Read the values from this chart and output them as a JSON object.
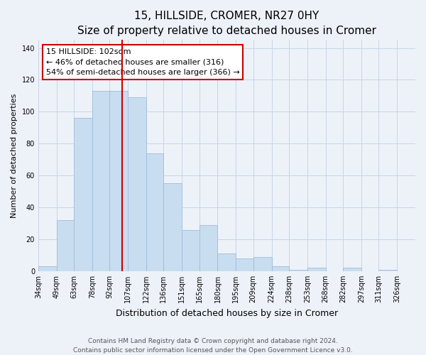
{
  "title": "15, HILLSIDE, CROMER, NR27 0HY",
  "subtitle": "Size of property relative to detached houses in Cromer",
  "xlabel": "Distribution of detached houses by size in Cromer",
  "ylabel": "Number of detached properties",
  "bar_color": "#c9ddf0",
  "bar_edge_color": "#a0bcd8",
  "background_color": "#edf2f9",
  "grid_color": "#c8d4e8",
  "categories": [
    "34sqm",
    "49sqm",
    "63sqm",
    "78sqm",
    "92sqm",
    "107sqm",
    "122sqm",
    "136sqm",
    "151sqm",
    "165sqm",
    "180sqm",
    "195sqm",
    "209sqm",
    "224sqm",
    "238sqm",
    "253sqm",
    "268sqm",
    "282sqm",
    "297sqm",
    "311sqm",
    "326sqm"
  ],
  "bar_heights": [
    3,
    32,
    96,
    113,
    113,
    109,
    74,
    55,
    26,
    29,
    11,
    8,
    9,
    3,
    1,
    2,
    0,
    2,
    0,
    1,
    0
  ],
  "bin_edges": [
    34,
    49,
    63,
    78,
    92,
    107,
    122,
    136,
    151,
    165,
    180,
    195,
    209,
    224,
    238,
    253,
    268,
    282,
    297,
    311,
    326,
    341
  ],
  "ylim": [
    0,
    145
  ],
  "yticks": [
    0,
    20,
    40,
    60,
    80,
    100,
    120,
    140
  ],
  "vline_x": 102,
  "vline_color": "#cc0000",
  "annotation_title": "15 HILLSIDE: 102sqm",
  "annotation_line1": "← 46% of detached houses are smaller (316)",
  "annotation_line2": "54% of semi-detached houses are larger (366) →",
  "annotation_box_facecolor": "#ffffff",
  "annotation_box_edgecolor": "#cc0000",
  "footer1": "Contains HM Land Registry data © Crown copyright and database right 2024.",
  "footer2": "Contains public sector information licensed under the Open Government Licence v3.0.",
  "title_fontsize": 11,
  "subtitle_fontsize": 9.5,
  "ylabel_fontsize": 8,
  "xlabel_fontsize": 9,
  "tick_fontsize": 7,
  "footer_fontsize": 6.5,
  "annot_fontsize": 8
}
